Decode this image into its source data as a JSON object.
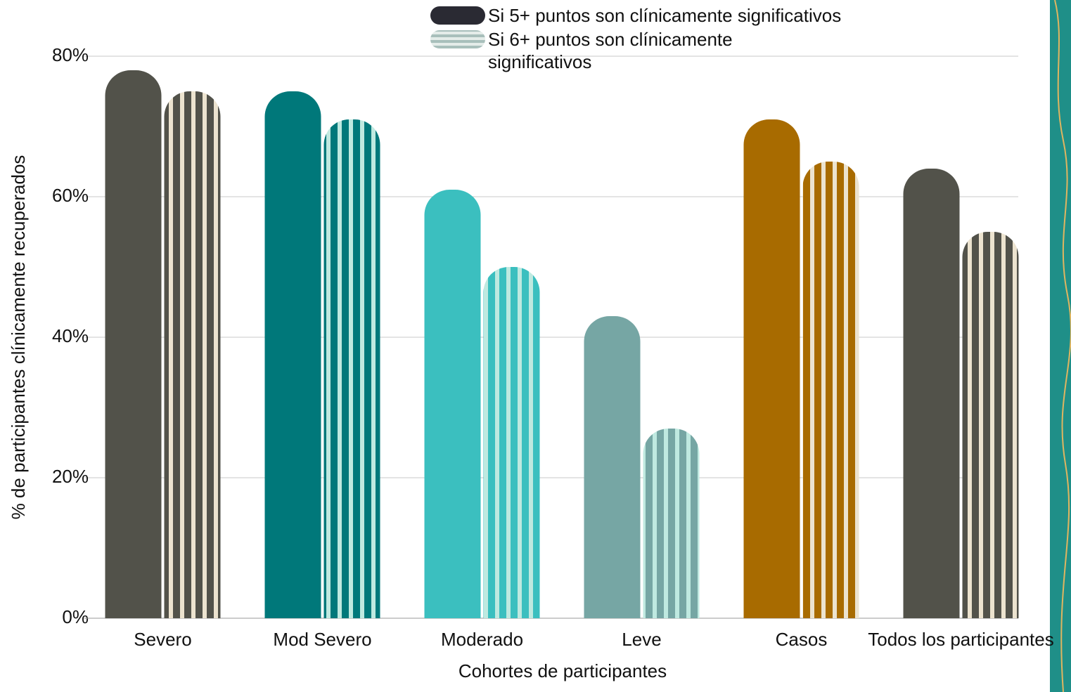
{
  "chart_data": {
    "type": "bar",
    "categories": [
      "Severo",
      "Mod Severo",
      "Moderado",
      "Leve",
      "Casos",
      "Todos los participantes"
    ],
    "series": [
      {
        "name": "Si 5+ puntos son clínicamente significativos",
        "color": "#2a2a33",
        "colors": [
          "#52524a",
          "#00787a",
          "#3bbfbf",
          "#76a6a4",
          "#a86b00",
          "#52524a"
        ],
        "values": [
          78,
          75,
          61,
          43,
          71,
          64
        ]
      },
      {
        "name": "Si 6+ puntos son clínicamente significativos",
        "color": "#a8bfbb",
        "colors": [
          "#52524a",
          "#00787a",
          "#3bbfbf",
          "#76a6a4",
          "#a86b00",
          "#52524a"
        ],
        "stripe_colors": [
          "#ece3cf",
          "#bfe9e0",
          "#bfe9e0",
          "#bfe9e0",
          "#ece3cf",
          "#ece3cf"
        ],
        "values": [
          75,
          71,
          50,
          27,
          65,
          55
        ]
      }
    ],
    "ylim": [
      0,
      80
    ],
    "yticks": [
      {
        "value": 0,
        "label": "0%"
      },
      {
        "value": 20,
        "label": "20%"
      },
      {
        "value": 40,
        "label": "40%"
      },
      {
        "value": 60,
        "label": "60%"
      },
      {
        "value": 80,
        "label": "80%"
      }
    ],
    "grid": true,
    "x_label": "Cohortes de participantes",
    "y_label": "% de participantes clínicamente recuperados"
  }
}
